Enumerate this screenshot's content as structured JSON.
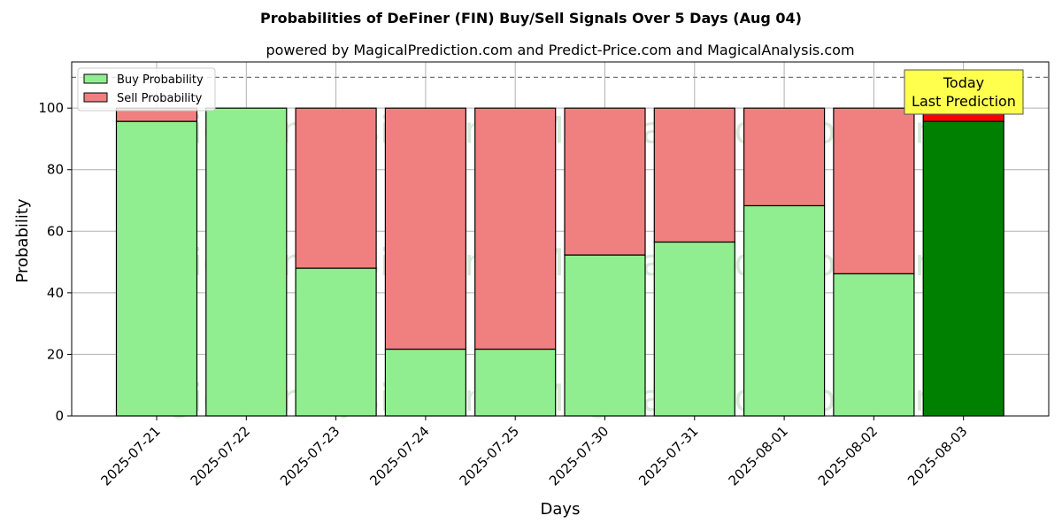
{
  "chart_data": {
    "type": "bar",
    "stacked": true,
    "title": "Probabilities of DeFiner (FIN) Buy/Sell Signals Over 5 Days (Aug 04)",
    "subtitle": "powered by MagicalPrediction.com and Predict-Price.com and MagicalAnalysis.com",
    "xlabel": "Days",
    "ylabel": "Probability",
    "ylim": [
      0,
      115
    ],
    "yticks": [
      0,
      20,
      40,
      60,
      80,
      100
    ],
    "reference_line": 110,
    "grid": true,
    "legend_position": "top-left",
    "categories": [
      "2025-07-21",
      "2025-07-22",
      "2025-07-23",
      "2025-07-24",
      "2025-07-25",
      "2025-07-30",
      "2025-07-31",
      "2025-08-01",
      "2025-08-02",
      "2025-08-03"
    ],
    "series": [
      {
        "name": "Buy Probability",
        "color": "#90ee90",
        "highlight_color": "#008000",
        "values": [
          95.7,
          100,
          48.0,
          21.7,
          21.7,
          52.3,
          56.5,
          68.3,
          46.2,
          95.7
        ]
      },
      {
        "name": "Sell Probability",
        "color": "#f08080",
        "highlight_color": "#ff0000",
        "values": [
          4.3,
          0,
          52.0,
          78.3,
          78.3,
          47.7,
          43.5,
          31.7,
          53.8,
          4.3
        ]
      }
    ],
    "highlight_index": 9,
    "annotation": {
      "line1": "Today",
      "line2": "Last Prediction",
      "color": "#ffff4d"
    },
    "watermarks": [
      "MagicalAnalysis.com",
      "MagicalPrediction.com"
    ]
  }
}
